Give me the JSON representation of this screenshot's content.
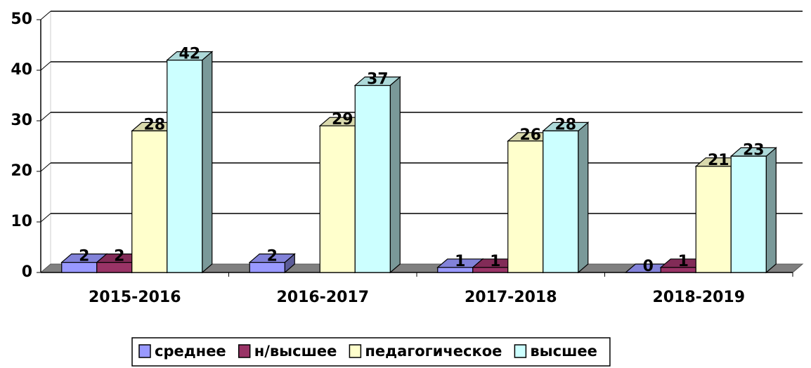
{
  "chart_data": {
    "type": "bar3d",
    "categories": [
      "2015-2016",
      "2016-2017",
      "2017-2018",
      "2018-2019"
    ],
    "series": [
      {
        "name": "среднее",
        "color": "#9999ff",
        "values": [
          2,
          2,
          1,
          0
        ]
      },
      {
        "name": "н/высшее",
        "color": "#993366",
        "values": [
          2,
          null,
          1,
          1
        ]
      },
      {
        "name": "педагогическое",
        "color": "#ffffcc",
        "values": [
          28,
          29,
          26,
          21
        ]
      },
      {
        "name": "высшее",
        "color": "#ccffff",
        "values": [
          42,
          37,
          28,
          23
        ]
      }
    ],
    "ylim": [
      0,
      50
    ],
    "yticks": [
      0,
      10,
      20,
      30,
      40,
      50
    ],
    "grid": true,
    "legend": "bottom"
  }
}
